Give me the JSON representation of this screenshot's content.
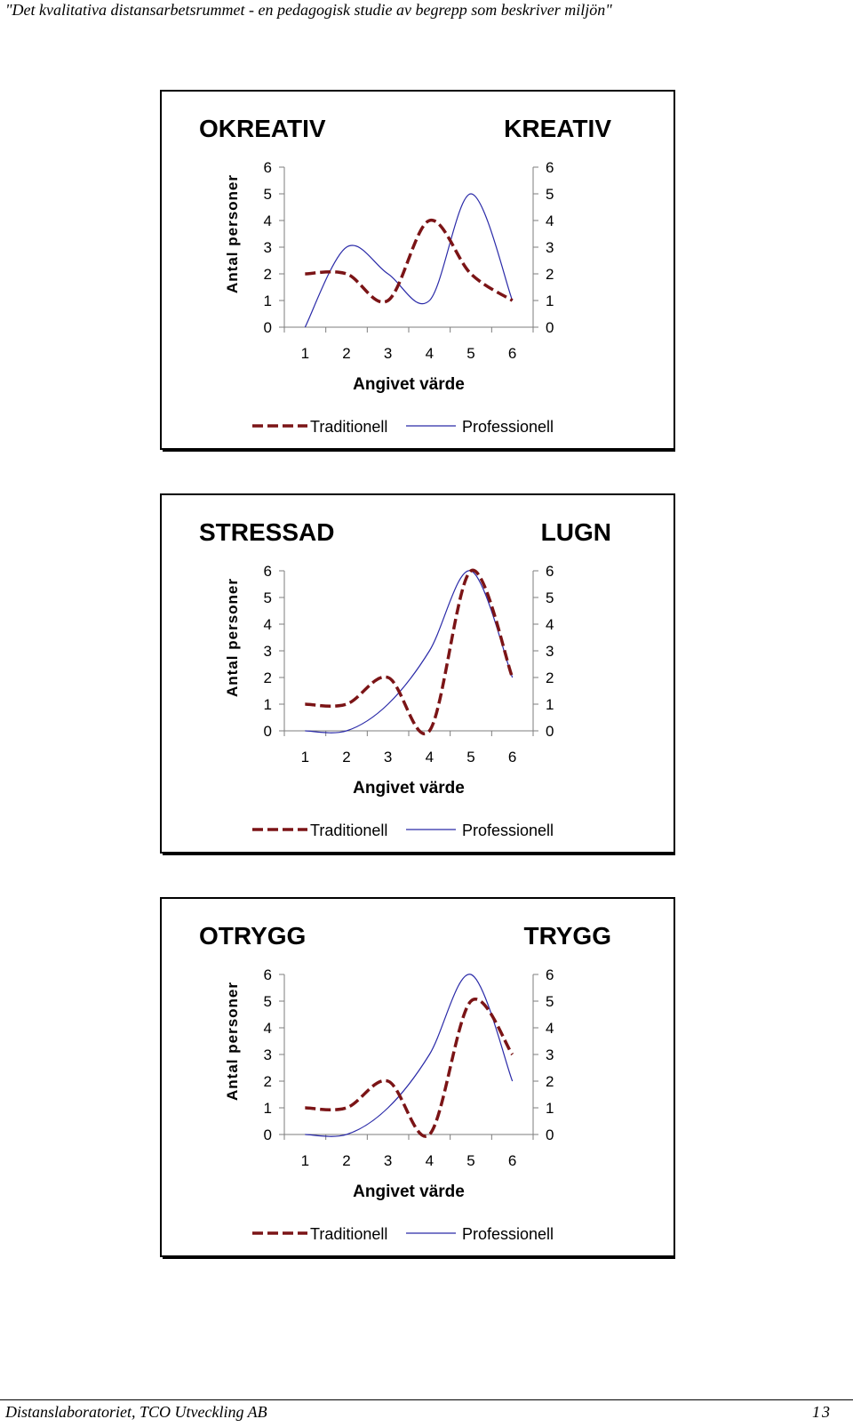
{
  "header": {
    "title": "\"Det kvalitativa distansarbetsrummet - en pedagogisk studie av begrepp som beskriver miljön\""
  },
  "footer": {
    "left": "Distanslaboratoriet, TCO Utveckling AB",
    "page_number": "13"
  },
  "colors": {
    "traditionell": "#7b1416",
    "professionell": "#2a2aa8",
    "frame": "#000000"
  },
  "chart_data": [
    {
      "type": "line",
      "left_label": "OKREATIV",
      "right_label": "KREATIV",
      "ylabel": "Antal personer",
      "xlabel": "Angivet värde",
      "x": [
        1,
        2,
        3,
        4,
        5,
        6
      ],
      "ylim": [
        0,
        6
      ],
      "yticks": [
        "0",
        "1",
        "2",
        "3",
        "4",
        "5",
        "6"
      ],
      "legend_position": "bottom",
      "series": [
        {
          "name": "Traditionell",
          "style": "dashed",
          "values": [
            2,
            2,
            1,
            4,
            2,
            1
          ]
        },
        {
          "name": "Professionell",
          "style": "solid",
          "values": [
            0,
            3,
            2,
            1,
            5,
            1
          ]
        }
      ]
    },
    {
      "type": "line",
      "left_label": "STRESSAD",
      "right_label": "LUGN",
      "ylabel": "Antal personer",
      "xlabel": "Angivet värde",
      "x": [
        1,
        2,
        3,
        4,
        5,
        6
      ],
      "ylim": [
        0,
        6
      ],
      "yticks": [
        "0",
        "1",
        "2",
        "3",
        "4",
        "5",
        "6"
      ],
      "legend_position": "bottom",
      "series": [
        {
          "name": "Traditionell",
          "style": "dashed",
          "values": [
            1,
            1,
            2,
            0,
            6,
            2
          ]
        },
        {
          "name": "Professionell",
          "style": "solid",
          "values": [
            0,
            0,
            1,
            3,
            6,
            2
          ]
        }
      ]
    },
    {
      "type": "line",
      "left_label": "OTRYGG",
      "right_label": "TRYGG",
      "ylabel": "Antal personer",
      "xlabel": "Angivet värde",
      "x": [
        1,
        2,
        3,
        4,
        5,
        6
      ],
      "ylim": [
        0,
        6
      ],
      "yticks": [
        "0",
        "1",
        "2",
        "3",
        "4",
        "5",
        "6"
      ],
      "legend_position": "bottom",
      "series": [
        {
          "name": "Traditionell",
          "style": "dashed",
          "values": [
            1,
            1,
            2,
            0,
            5,
            3
          ]
        },
        {
          "name": "Professionell",
          "style": "solid",
          "values": [
            0,
            0,
            1,
            3,
            6,
            2
          ]
        }
      ]
    }
  ]
}
